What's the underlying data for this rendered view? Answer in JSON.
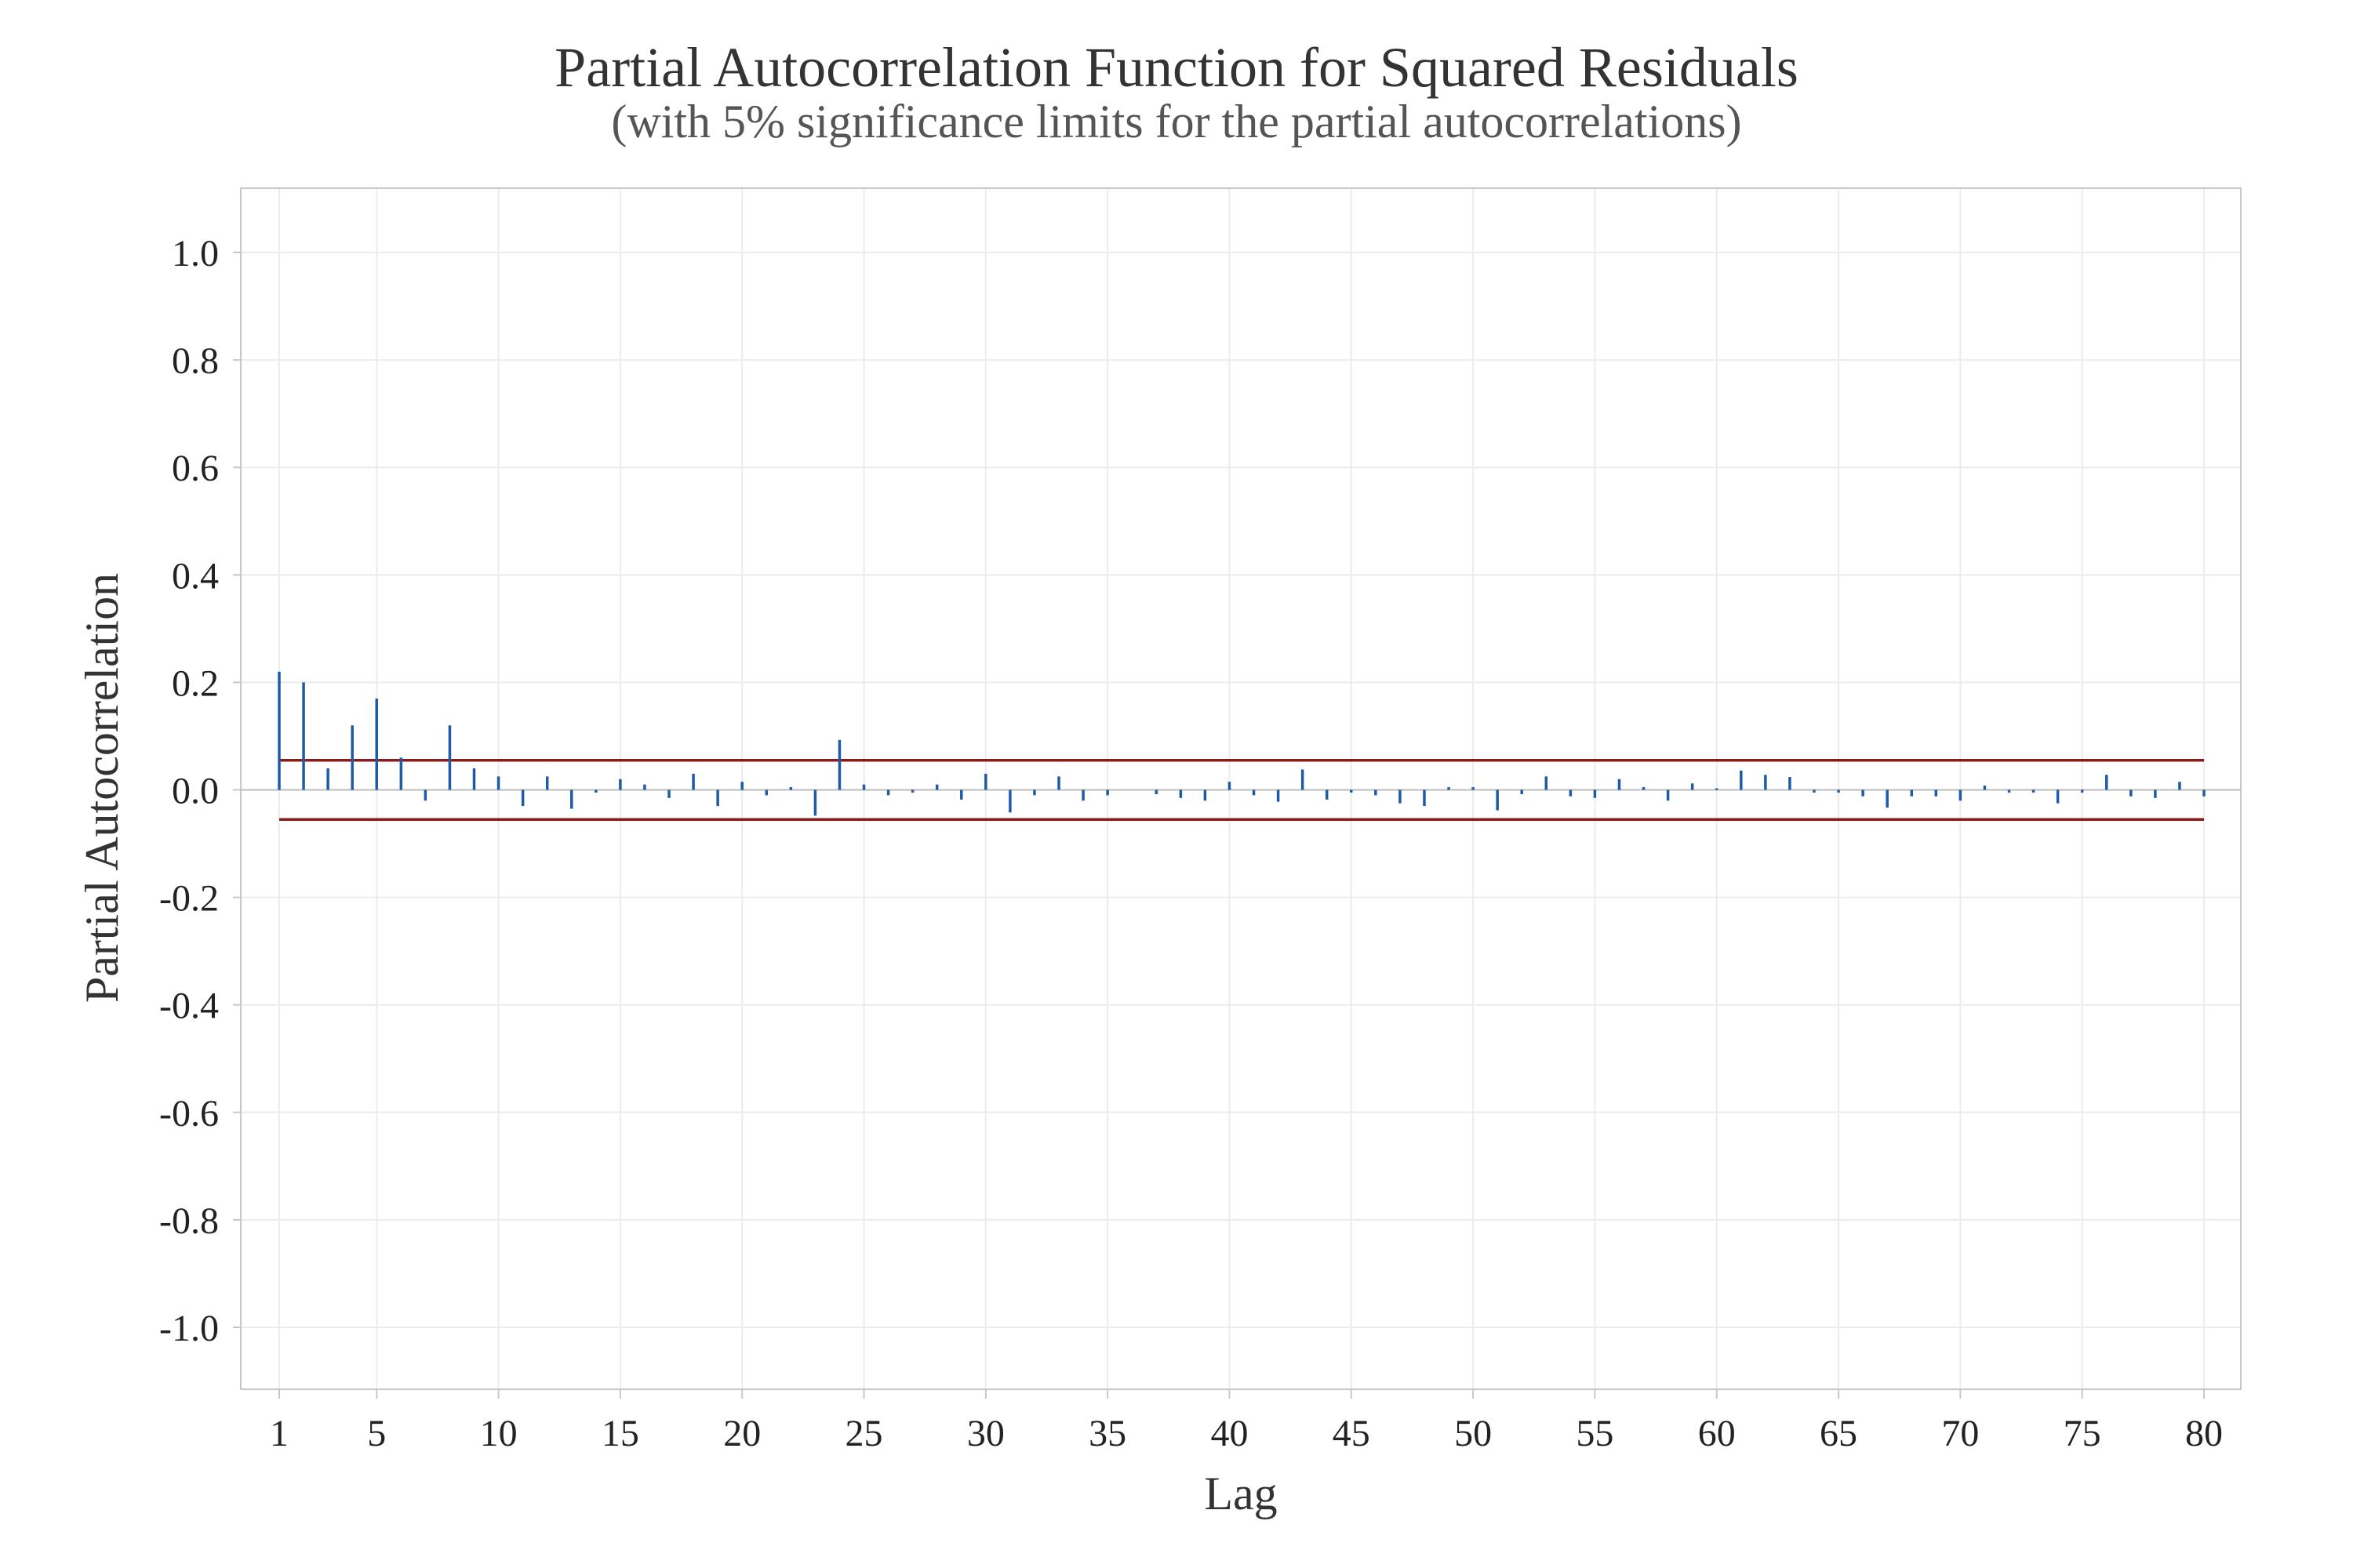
{
  "chart_data": {
    "type": "bar",
    "title": "Partial Autocorrelation Function for Squared Residuals",
    "subtitle": "(with 5% significance limits for the partial autocorrelations)",
    "xlabel": "Lag",
    "ylabel": "Partial Autocorrelation",
    "xlim": [
      1,
      80
    ],
    "ylim": [
      -1.1,
      1.1
    ],
    "x_ticks": [
      1,
      5,
      10,
      15,
      20,
      25,
      30,
      35,
      40,
      45,
      50,
      55,
      60,
      65,
      70,
      75,
      80
    ],
    "y_ticks": [
      1.0,
      0.8,
      0.6,
      0.4,
      0.2,
      0.0,
      -0.2,
      -0.4,
      -0.6,
      -0.8,
      -1.0
    ],
    "y_tick_labels": [
      "1.0",
      "0.8",
      "0.6",
      "0.4",
      "0.2",
      "0.0",
      "-0.2",
      "-0.4",
      "-0.6",
      "-0.8",
      "-1.0"
    ],
    "grid": true,
    "significance_limit": 0.055,
    "series": [
      {
        "lags": [
          1,
          2,
          3,
          4,
          5,
          6,
          7,
          8,
          9,
          10,
          11,
          12,
          13,
          14,
          15,
          16,
          17,
          18,
          19,
          20,
          21,
          22,
          23,
          24,
          25,
          26,
          27,
          28,
          29,
          30,
          31,
          32,
          33,
          34,
          35,
          36,
          37,
          38,
          39,
          40,
          41,
          42,
          43,
          44,
          45,
          46,
          47,
          48,
          49,
          50,
          51,
          52,
          53,
          54,
          55,
          56,
          57,
          58,
          59,
          60,
          61,
          62,
          63,
          64,
          65,
          66,
          67,
          68,
          69,
          70,
          71,
          72,
          73,
          74,
          75,
          76,
          77,
          78,
          79,
          80
        ],
        "values": [
          0.22,
          0.2,
          0.04,
          0.12,
          0.17,
          0.06,
          -0.02,
          0.12,
          0.04,
          0.025,
          -0.03,
          0.025,
          -0.035,
          -0.005,
          0.02,
          0.01,
          -0.015,
          0.03,
          -0.03,
          0.015,
          -0.01,
          0.005,
          -0.048,
          0.093,
          0.01,
          -0.01,
          -0.005,
          0.01,
          -0.018,
          0.03,
          -0.042,
          -0.01,
          0.025,
          -0.02,
          -0.01,
          0.0,
          -0.008,
          -0.015,
          -0.02,
          0.015,
          -0.01,
          -0.022,
          0.038,
          -0.018,
          -0.005,
          -0.01,
          -0.025,
          -0.03,
          0.005,
          0.005,
          -0.038,
          -0.008,
          0.025,
          -0.012,
          -0.015,
          0.02,
          0.005,
          -0.02,
          0.012,
          0.003,
          0.036,
          0.028,
          0.024,
          -0.005,
          -0.005,
          -0.012,
          -0.033,
          -0.012,
          -0.012,
          -0.02,
          0.008,
          -0.005,
          -0.005,
          -0.025,
          -0.005,
          0.028,
          -0.012,
          -0.015,
          0.015,
          -0.012
        ]
      }
    ]
  },
  "colors": {
    "spike": "#1f5aa6",
    "significance_line": "#8b1a1a",
    "zero_line": "#bbbbbb",
    "grid": "#ececec",
    "frame": "#c8c8c8"
  }
}
